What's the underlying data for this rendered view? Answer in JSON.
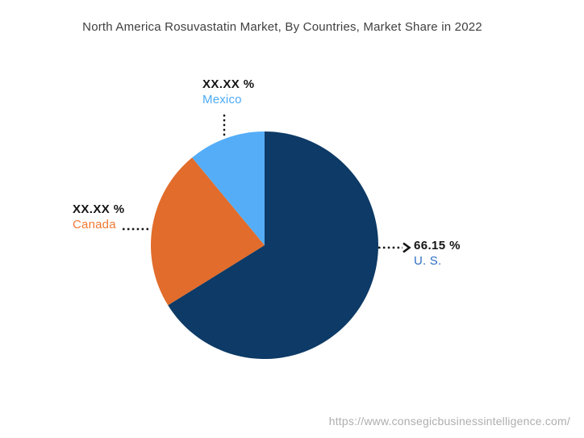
{
  "page": {
    "title": "North America Rosuvastatin Market, By Countries, Market Share in 2022",
    "source_url": "https://www.consegicbusinessintelligence.com/"
  },
  "chart_data": {
    "type": "pie",
    "title": "North America Rosuvastatin Market, By Countries, Market Share in 2022",
    "start_angle_deg": 0,
    "direction": "clockwise",
    "legend_position": "callout-labels",
    "slices": [
      {
        "label": "U. S.",
        "display_value": "66.15 %",
        "value": 66.15,
        "estimated": false,
        "color": "#0d3a66",
        "label_color": "#2e6fc4"
      },
      {
        "label": "Canada",
        "display_value": "XX.XX %",
        "value": 22.85,
        "estimated": true,
        "color": "#e16c2b",
        "label_color": "#ee7833"
      },
      {
        "label": "Mexico",
        "display_value": "XX.XX %",
        "value": 11.0,
        "estimated": true,
        "color": "#55adf8",
        "label_color": "#4caaf5"
      }
    ]
  }
}
